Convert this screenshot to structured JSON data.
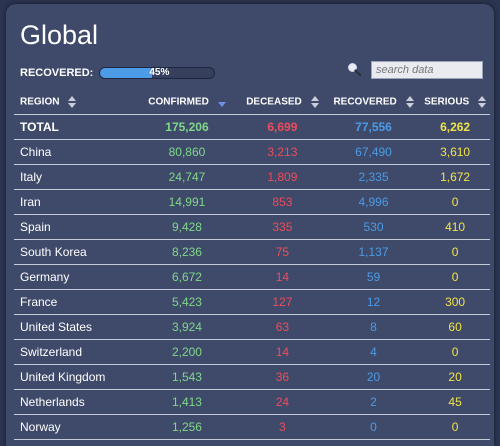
{
  "title": "Global",
  "recovered": {
    "label": "RECOVERED:",
    "percent": 45,
    "text": "45%"
  },
  "search": {
    "placeholder": "search data"
  },
  "columns": [
    "REGION",
    "CONFIRMED",
    "DECEASED",
    "RECOVERED",
    "SERIOUS"
  ],
  "total": {
    "region": "TOTAL",
    "confirmed": "175,206",
    "deceased": "6,699",
    "recovered": "77,556",
    "serious": "6,262"
  },
  "rows": [
    {
      "region": "China",
      "confirmed": "80,860",
      "deceased": "3,213",
      "recovered": "67,490",
      "serious": "3,610"
    },
    {
      "region": "Italy",
      "confirmed": "24,747",
      "deceased": "1,809",
      "recovered": "2,335",
      "serious": "1,672"
    },
    {
      "region": "Iran",
      "confirmed": "14,991",
      "deceased": "853",
      "recovered": "4,996",
      "serious": "0"
    },
    {
      "region": "Spain",
      "confirmed": "9,428",
      "deceased": "335",
      "recovered": "530",
      "serious": "410"
    },
    {
      "region": "South Korea",
      "confirmed": "8,236",
      "deceased": "75",
      "recovered": "1,137",
      "serious": "0"
    },
    {
      "region": "Germany",
      "confirmed": "6,672",
      "deceased": "14",
      "recovered": "59",
      "serious": "0"
    },
    {
      "region": "France",
      "confirmed": "5,423",
      "deceased": "127",
      "recovered": "12",
      "serious": "300"
    },
    {
      "region": "United States",
      "confirmed": "3,924",
      "deceased": "63",
      "recovered": "8",
      "serious": "60"
    },
    {
      "region": "Switzerland",
      "confirmed": "2,200",
      "deceased": "14",
      "recovered": "4",
      "serious": "0"
    },
    {
      "region": "United Kingdom",
      "confirmed": "1,543",
      "deceased": "36",
      "recovered": "20",
      "serious": "20"
    },
    {
      "region": "Netherlands",
      "confirmed": "1,413",
      "deceased": "24",
      "recovered": "2",
      "serious": "45"
    },
    {
      "region": "Norway",
      "confirmed": "1,256",
      "deceased": "3",
      "recovered": "0",
      "serious": "0"
    }
  ],
  "colors": {
    "background": "#2b3450",
    "panel": "#3f4a6a",
    "confirmed": "#7fd88a",
    "deceased": "#ee4c5a",
    "recovered": "#4b9be6",
    "serious": "#f2e24a"
  },
  "icons": {
    "search": "magnifier-icon",
    "sort": "sort-updown-icon",
    "sort_active": "sort-desc-icon"
  },
  "active_sort": "CONFIRMED"
}
